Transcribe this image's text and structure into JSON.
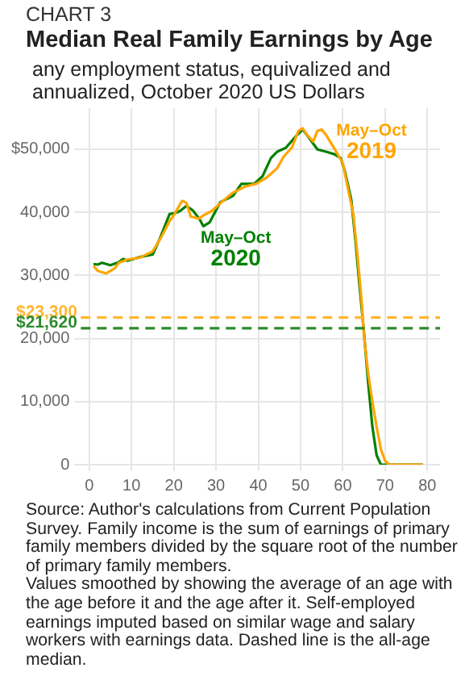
{
  "chart_data": {
    "type": "line",
    "title": "Median Real Family Earnings by Age",
    "subtitle": "any employment status, equivalized and annualized, October 2020 US Dollars",
    "annotations": [
      "CHART 3",
      "Source: Author's calculations from Current Population Survey. Family income is the sum of earnings of primary family members divided by the square root of the number of primary family members.\nValues smoothed by showing the average of an age with the age before it and the age after it. Self-employed earnings imputed based on similar wage and salary workers with earnings data. Dashed line is the all-age median."
    ],
    "series": [
      {
        "name": "May–Oct 2019",
        "color": "#ffa500",
        "x": [
          1,
          2,
          4,
          6,
          7,
          9,
          12,
          15,
          17,
          19,
          20,
          21.5,
          22,
          23,
          24,
          26,
          27,
          29,
          31.5,
          34,
          37,
          39.5,
          42,
          44.5,
          46,
          48,
          49.5,
          50.5,
          51.5,
          53,
          54,
          55,
          56,
          58,
          60,
          61,
          62.5,
          63.5,
          64.5,
          65,
          66,
          67,
          68,
          69,
          70,
          71,
          79
        ],
        "values": [
          31500,
          30700,
          30300,
          31100,
          32000,
          32500,
          32800,
          33800,
          36000,
          38600,
          39500,
          41300,
          41800,
          41500,
          39300,
          39000,
          39500,
          40200,
          41700,
          43100,
          44100,
          44500,
          45500,
          47000,
          48800,
          50300,
          52900,
          53300,
          52300,
          51200,
          52900,
          53100,
          52300,
          50100,
          47800,
          44500,
          39600,
          33000,
          25500,
          20500,
          14500,
          10000,
          6000,
          2500,
          600,
          0,
          0
        ]
      },
      {
        "name": "May–Oct 2020",
        "color": "#008000",
        "x": [
          1,
          2,
          3,
          5,
          7,
          8,
          9,
          12,
          15,
          16.5,
          19,
          20.5,
          21.5,
          23,
          24.5,
          26,
          27,
          28.5,
          31,
          34,
          36,
          39,
          41,
          43,
          44.5,
          46.5,
          49,
          50.5,
          52,
          54,
          56,
          58,
          59.5,
          60.5,
          62,
          63,
          64,
          65,
          66,
          67,
          68,
          69,
          79
        ],
        "values": [
          31800,
          31700,
          32000,
          31600,
          32100,
          32600,
          32300,
          32900,
          33300,
          35500,
          39700,
          39900,
          40200,
          41000,
          40300,
          39000,
          37800,
          38400,
          41600,
          42600,
          44500,
          44500,
          45700,
          48600,
          49600,
          50200,
          52100,
          53100,
          51800,
          49950,
          49600,
          49200,
          48600,
          46500,
          42000,
          35500,
          28000,
          21000,
          13000,
          6000,
          1500,
          0,
          0
        ]
      }
    ],
    "xlim": [
      -2,
      83
    ],
    "xticks": [
      0,
      10,
      20,
      30,
      40,
      50,
      60,
      70,
      80
    ],
    "ylim": [
      0,
      56500
    ],
    "yticks": [
      {
        "value": 0,
        "label": "0"
      },
      {
        "value": 10000,
        "label": "10,000"
      },
      {
        "value": 20000,
        "label": "20,000"
      },
      {
        "value": 30000,
        "label": "30,000"
      },
      {
        "value": 40000,
        "label": "40,000"
      },
      {
        "value": 50000,
        "label": "$50,000"
      }
    ],
    "ref_lines": [
      {
        "axis": "y",
        "value": 23300,
        "label": "$23,300",
        "color": "#ffb733",
        "line_style": "dashed"
      },
      {
        "axis": "y",
        "value": 21620,
        "label": "$21,620",
        "color": "#2e8b2e",
        "line_style": "dashed"
      }
    ],
    "grid": true,
    "legend": false,
    "marker": "none",
    "line_style": "solid"
  }
}
